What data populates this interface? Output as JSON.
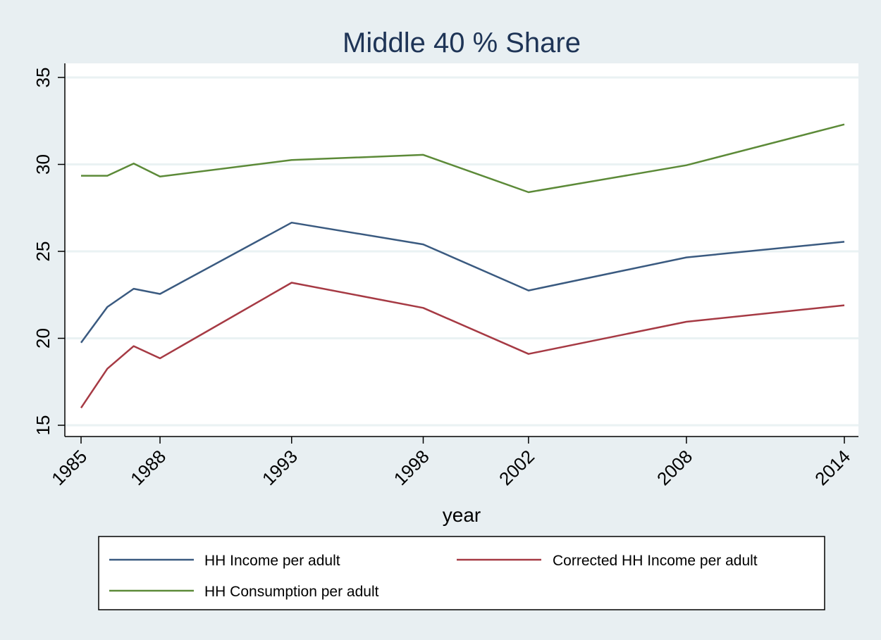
{
  "chart_data": {
    "type": "line",
    "title": "Middle 40 % Share",
    "xlabel": "year",
    "ylabel": "",
    "xlim": [
      1985,
      2014
    ],
    "ylim": [
      14.5,
      35.5
    ],
    "x_ticks": [
      1985,
      1988,
      1993,
      1998,
      2002,
      2008,
      2014
    ],
    "y_ticks": [
      15,
      20,
      25,
      30,
      35
    ],
    "grid": "horizontal",
    "legend_position": "bottom",
    "colors": {
      "background": "#e8eff2",
      "plot_background": "#ffffff",
      "grid": "#eaf2f3",
      "title": "#1e3456"
    },
    "x": [
      1985,
      1986,
      1987,
      1988,
      1993,
      1998,
      2002,
      2008,
      2014
    ],
    "series": [
      {
        "name": "HH Income per adult",
        "color": "#3a5a80",
        "values": [
          19.75,
          21.8,
          22.85,
          22.55,
          26.65,
          25.4,
          22.75,
          24.65,
          25.55
        ]
      },
      {
        "name": "Corrected HH Income per adult",
        "color": "#a63a44",
        "values": [
          16.0,
          18.25,
          19.55,
          18.85,
          23.2,
          21.75,
          19.1,
          20.95,
          21.9
        ]
      },
      {
        "name": "HH Consumption per adult",
        "color": "#5c8a38",
        "values": [
          29.35,
          29.35,
          30.05,
          29.3,
          30.25,
          30.55,
          28.4,
          29.95,
          32.3
        ]
      }
    ]
  }
}
